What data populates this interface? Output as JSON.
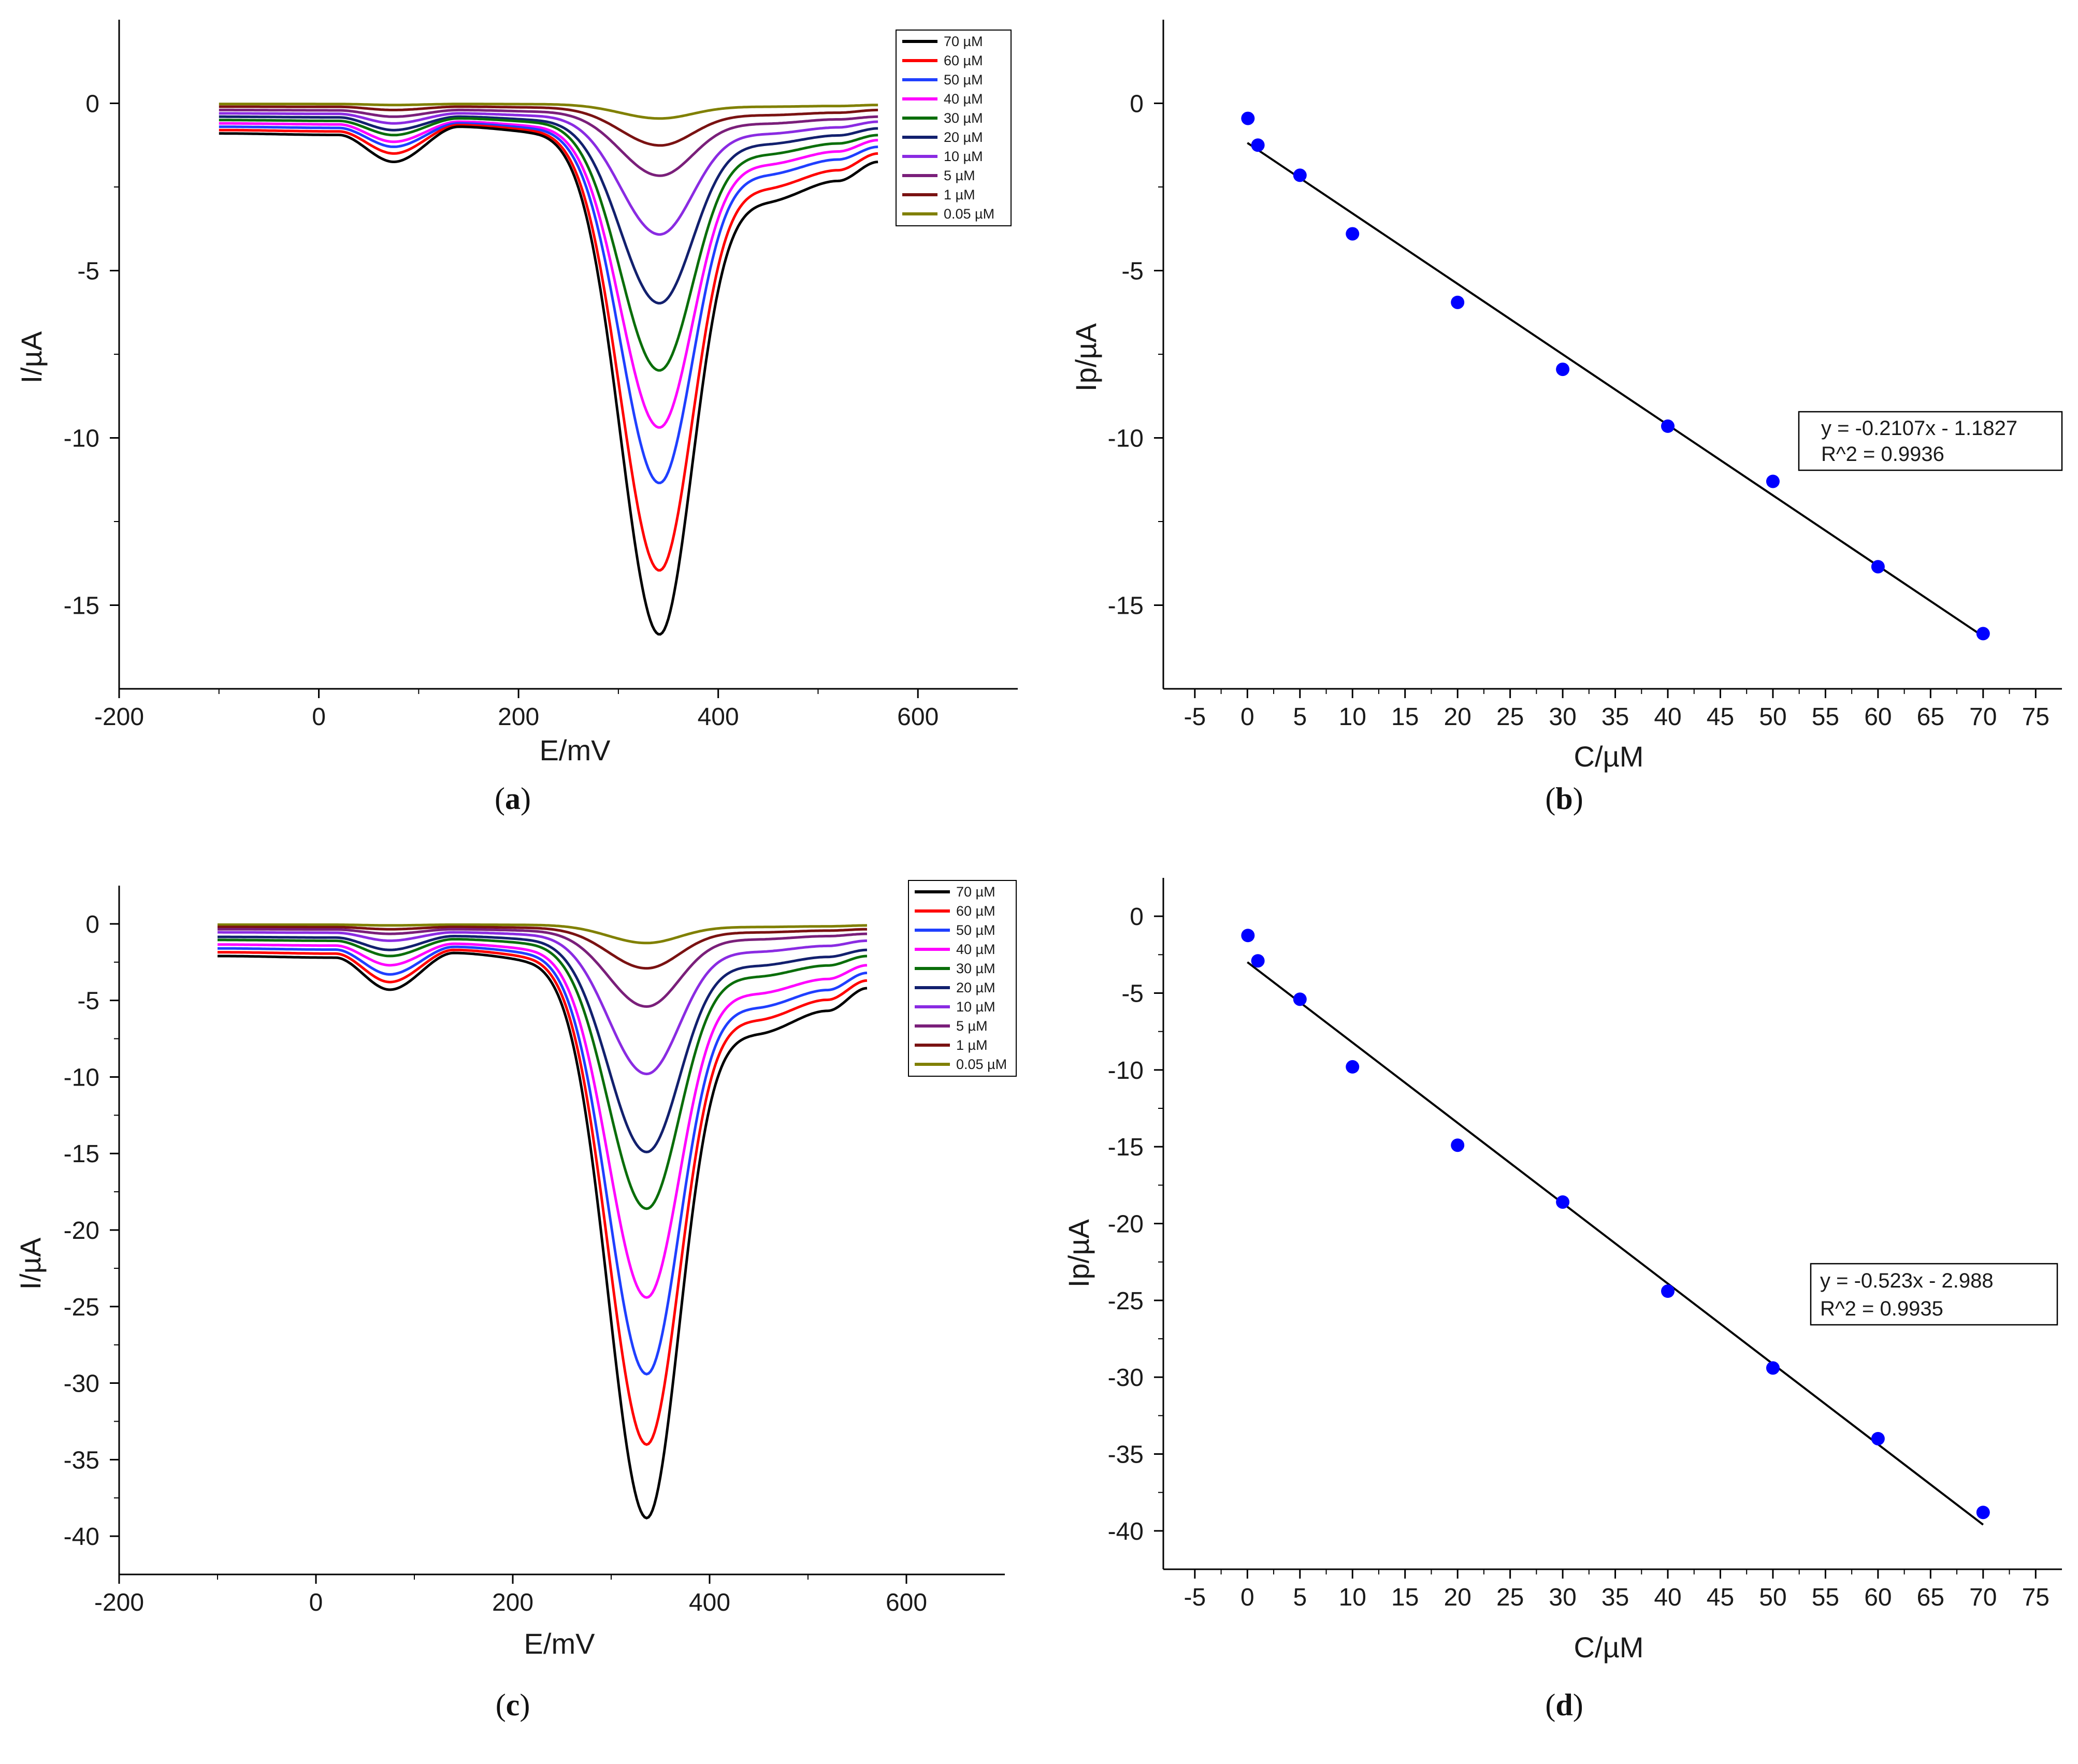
{
  "chart_data": [
    {
      "panel": "a",
      "type": "line",
      "xlabel": "E/mV",
      "ylabel": "I/µA",
      "xlim": [
        -200,
        700
      ],
      "ylim": [
        -17.5,
        2.5
      ],
      "xticks": [
        -200,
        0,
        200,
        400,
        600
      ],
      "yticks": [
        0,
        -5,
        -10,
        -15
      ],
      "legend_position": "top-right",
      "x_range_data": [
        -100,
        560
      ],
      "series": [
        {
          "name": "70 µM",
          "color": "#000000",
          "peak_x": 340,
          "peak_y": -15.8,
          "start_y": -0.9,
          "shoulder1": -1.75,
          "bump_x": 140,
          "bump_y": -0.7,
          "shoulder2": -2.9,
          "end_y": -1.75
        },
        {
          "name": "60 µM",
          "color": "#ff0000",
          "peak_x": 340,
          "peak_y": -13.9,
          "start_y": -0.8,
          "shoulder1": -1.5,
          "bump_x": 140,
          "bump_y": -0.65,
          "shoulder2": -2.5,
          "end_y": -1.5
        },
        {
          "name": "50 µM",
          "color": "#1f3fff",
          "peak_x": 340,
          "peak_y": -11.3,
          "start_y": -0.7,
          "shoulder1": -1.3,
          "bump_x": 140,
          "bump_y": -0.6,
          "shoulder2": -2.1,
          "end_y": -1.3
        },
        {
          "name": "40 µM",
          "color": "#ff00ff",
          "peak_x": 340,
          "peak_y": -9.65,
          "start_y": -0.6,
          "shoulder1": -1.15,
          "bump_x": 140,
          "bump_y": -0.55,
          "shoulder2": -1.8,
          "end_y": -1.1
        },
        {
          "name": "30 µM",
          "color": "#0a6e0a",
          "peak_x": 340,
          "peak_y": -7.95,
          "start_y": -0.5,
          "shoulder1": -0.95,
          "bump_x": 140,
          "bump_y": -0.45,
          "shoulder2": -1.5,
          "end_y": -0.95
        },
        {
          "name": "20 µM",
          "color": "#12206e",
          "peak_x": 340,
          "peak_y": -5.95,
          "start_y": -0.4,
          "shoulder1": -0.8,
          "bump_x": 140,
          "bump_y": -0.4,
          "shoulder2": -1.2,
          "end_y": -0.75
        },
        {
          "name": "10 µM",
          "color": "#8a2be2",
          "peak_x": 340,
          "peak_y": -3.9,
          "start_y": -0.3,
          "shoulder1": -0.6,
          "bump_x": 140,
          "bump_y": -0.3,
          "shoulder2": -0.9,
          "end_y": -0.55
        },
        {
          "name": "5 µM",
          "color": "#7a1f7a",
          "peak_x": 340,
          "peak_y": -2.15,
          "start_y": -0.2,
          "shoulder1": -0.4,
          "bump_x": 140,
          "bump_y": -0.2,
          "shoulder2": -0.6,
          "end_y": -0.4
        },
        {
          "name": "1 µM",
          "color": "#7a1212",
          "peak_x": 340,
          "peak_y": -1.25,
          "start_y": -0.1,
          "shoulder1": -0.2,
          "bump_x": 140,
          "bump_y": -0.1,
          "shoulder2": -0.35,
          "end_y": -0.2
        },
        {
          "name": "0.05 µM",
          "color": "#808000",
          "peak_x": 340,
          "peak_y": -0.45,
          "start_y": -0.02,
          "shoulder1": -0.05,
          "bump_x": 140,
          "bump_y": -0.02,
          "shoulder2": -0.1,
          "end_y": -0.05
        }
      ]
    },
    {
      "panel": "b",
      "type": "scatter",
      "xlabel": "C/µM",
      "ylabel": "Ip/µA",
      "xlim": [
        -8,
        77.5
      ],
      "ylim": [
        -17.5,
        2.5
      ],
      "xticks": [
        -5,
        0,
        5,
        10,
        15,
        20,
        25,
        30,
        35,
        40,
        45,
        50,
        55,
        60,
        65,
        70,
        75
      ],
      "yticks": [
        0,
        -5,
        -10,
        -15
      ],
      "x": [
        0.05,
        1,
        5,
        10,
        20,
        30,
        40,
        50,
        60,
        70
      ],
      "y": [
        -0.45,
        -1.25,
        -2.15,
        -3.9,
        -5.95,
        -7.95,
        -9.65,
        -11.3,
        -13.85,
        -15.85
      ],
      "fit": {
        "slope": -0.2107,
        "intercept": -1.1827,
        "x_from": 0,
        "x_to": 70
      },
      "equation": "y = -0.2107x - 1.1827",
      "r2": "R^2 = 0.9936"
    },
    {
      "panel": "c",
      "type": "line",
      "xlabel": "E/mV",
      "ylabel": "I/µA",
      "xlim": [
        -200,
        700
      ],
      "ylim": [
        -42.5,
        2.5
      ],
      "xticks": [
        -200,
        0,
        200,
        400,
        600
      ],
      "yticks": [
        0,
        -5,
        -10,
        -15,
        -20,
        -25,
        -30,
        -35,
        -40
      ],
      "legend_position": "top-right",
      "x_range_data": [
        -100,
        560
      ],
      "series": [
        {
          "name": "70 µM",
          "color": "#000000",
          "peak_x": 335,
          "peak_y": -38.8,
          "start_y": -2.1,
          "shoulder1": -4.3,
          "bump_x": 140,
          "bump_y": -1.9,
          "shoulder2": -7.1,
          "end_y": -4.2
        },
        {
          "name": "60 µM",
          "color": "#ff0000",
          "peak_x": 335,
          "peak_y": -34.0,
          "start_y": -1.85,
          "shoulder1": -3.8,
          "bump_x": 140,
          "bump_y": -1.7,
          "shoulder2": -6.2,
          "end_y": -3.7
        },
        {
          "name": "50 µM",
          "color": "#1f3fff",
          "peak_x": 335,
          "peak_y": -29.4,
          "start_y": -1.6,
          "shoulder1": -3.3,
          "bump_x": 140,
          "bump_y": -1.5,
          "shoulder2": -5.4,
          "end_y": -3.2
        },
        {
          "name": "40 µM",
          "color": "#ff00ff",
          "peak_x": 335,
          "peak_y": -24.4,
          "start_y": -1.35,
          "shoulder1": -2.7,
          "bump_x": 140,
          "bump_y": -1.3,
          "shoulder2": -4.5,
          "end_y": -2.7
        },
        {
          "name": "30 µM",
          "color": "#0a6e0a",
          "peak_x": 335,
          "peak_y": -18.6,
          "start_y": -1.05,
          "shoulder1": -2.1,
          "bump_x": 140,
          "bump_y": -1.0,
          "shoulder2": -3.4,
          "end_y": -2.1
        },
        {
          "name": "20 µM",
          "color": "#12206e",
          "peak_x": 335,
          "peak_y": -14.9,
          "start_y": -0.85,
          "shoulder1": -1.7,
          "bump_x": 140,
          "bump_y": -0.8,
          "shoulder2": -2.7,
          "end_y": -1.7
        },
        {
          "name": "10 µM",
          "color": "#8a2be2",
          "peak_x": 335,
          "peak_y": -9.8,
          "start_y": -0.55,
          "shoulder1": -1.1,
          "bump_x": 140,
          "bump_y": -0.55,
          "shoulder2": -1.8,
          "end_y": -1.1
        },
        {
          "name": "5 µM",
          "color": "#7a1f7a",
          "peak_x": 335,
          "peak_y": -5.4,
          "start_y": -0.35,
          "shoulder1": -0.65,
          "bump_x": 140,
          "bump_y": -0.35,
          "shoulder2": -1.0,
          "end_y": -0.65
        },
        {
          "name": "1 µM",
          "color": "#7a1212",
          "peak_x": 335,
          "peak_y": -2.9,
          "start_y": -0.2,
          "shoulder1": -0.35,
          "bump_x": 140,
          "bump_y": -0.2,
          "shoulder2": -0.55,
          "end_y": -0.35
        },
        {
          "name": "0.05 µM",
          "color": "#808000",
          "peak_x": 335,
          "peak_y": -1.25,
          "start_y": -0.05,
          "shoulder1": -0.1,
          "bump_x": 140,
          "bump_y": -0.05,
          "shoulder2": -0.2,
          "end_y": -0.1
        }
      ]
    },
    {
      "panel": "d",
      "type": "scatter",
      "xlabel": "C/µM",
      "ylabel": "Ip/µA",
      "xlim": [
        -8,
        77.5
      ],
      "ylim": [
        -42.5,
        2.5
      ],
      "xticks": [
        -5,
        0,
        5,
        10,
        15,
        20,
        25,
        30,
        35,
        40,
        45,
        50,
        55,
        60,
        65,
        70,
        75
      ],
      "yticks": [
        0,
        -5,
        -10,
        -15,
        -20,
        -25,
        -30,
        -35,
        -40
      ],
      "x": [
        0.05,
        1,
        5,
        10,
        20,
        30,
        40,
        50,
        60,
        70
      ],
      "y": [
        -1.25,
        -2.9,
        -5.4,
        -9.8,
        -14.9,
        -18.6,
        -24.4,
        -29.4,
        -34.0,
        -38.8
      ],
      "fit": {
        "slope": -0.523,
        "intercept": -2.988,
        "x_from": 0,
        "x_to": 70
      },
      "equation": "y = -0.523x - 2.988",
      "r2": "R^2 = 0.9935"
    }
  ],
  "captions": {
    "a": "a",
    "b": "b",
    "c": "c",
    "d": "d"
  },
  "colors": {
    "scatter_point": "#0000ff",
    "fit_line": "#000000",
    "axis": "#000000"
  }
}
